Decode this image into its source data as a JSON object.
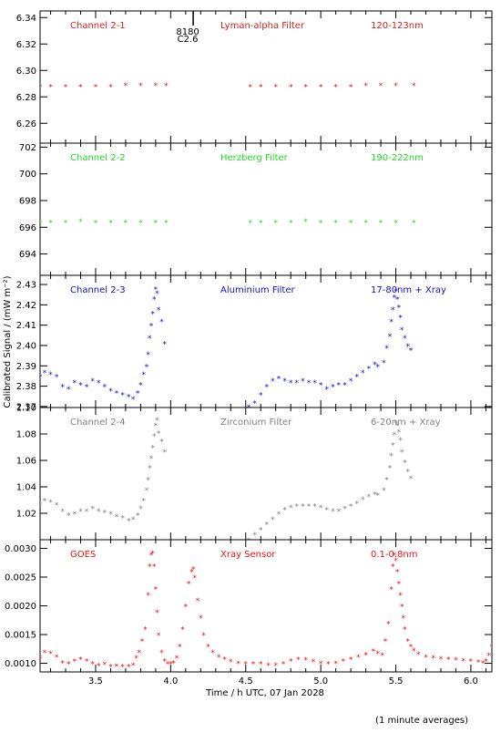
{
  "figure": {
    "ylabel": "Calibrated Signal / (mW m⁻²)",
    "xlabel": "Time / h UTC, 07 Jan 2028",
    "footnote": "(1 minute averages)",
    "xticks": [
      "3.5",
      "4.0",
      "4.5",
      "5.0",
      "5.5",
      "6.0"
    ],
    "marker": {
      "label_top": "8180",
      "label_bottom": "C2.6",
      "x": 4.15
    },
    "xlim": [
      3.13,
      6.14
    ]
  },
  "chart_data": [
    {
      "type": "scatter",
      "panel": "channel-2-1",
      "title": "",
      "xlabel": "",
      "ylabel": "",
      "labels": [
        "Channel 2-1",
        "Lyman-alpha Filter",
        "120-123nm"
      ],
      "color": "#d42020",
      "ylim": [
        6.245,
        6.345
      ],
      "yticks": [
        "6.26",
        "6.28",
        "6.30",
        "6.32",
        "6.34"
      ],
      "ytick_values": [
        6.26,
        6.28,
        6.3,
        6.32,
        6.34
      ],
      "series": [
        {
          "x": [
            3.13,
            3.2,
            3.3,
            3.4,
            3.5,
            3.6,
            3.7,
            3.8,
            3.9,
            3.97,
            4.53,
            4.6,
            4.7,
            4.8,
            4.9,
            5.0,
            5.1,
            5.2,
            5.3,
            5.4,
            5.5,
            5.62
          ],
          "y": [
            6.288,
            6.288,
            6.288,
            6.288,
            6.288,
            6.288,
            6.289,
            6.289,
            6.289,
            6.289,
            6.288,
            6.288,
            6.288,
            6.288,
            6.288,
            6.288,
            6.288,
            6.288,
            6.289,
            6.289,
            6.289,
            6.289
          ]
        }
      ]
    },
    {
      "type": "scatter",
      "panel": "channel-2-2",
      "title": "",
      "xlabel": "",
      "ylabel": "",
      "labels": [
        "Channel 2-2",
        "Herzberg Filter",
        "190-222nm"
      ],
      "color": "#22dd22",
      "ylim": [
        692.4,
        702.3
      ],
      "yticks": [
        "694",
        "696",
        "698",
        "700",
        "702"
      ],
      "ytick_values": [
        694,
        696,
        698,
        700,
        702
      ],
      "series": [
        {
          "x": [
            3.13,
            3.2,
            3.3,
            3.4,
            3.5,
            3.6,
            3.7,
            3.8,
            3.9,
            3.97,
            4.53,
            4.6,
            4.7,
            4.8,
            4.9,
            5.0,
            5.1,
            5.2,
            5.3,
            5.4,
            5.5,
            5.62
          ],
          "y": [
            696.4,
            696.4,
            696.4,
            696.5,
            696.4,
            696.4,
            696.4,
            696.4,
            696.4,
            696.4,
            696.4,
            696.4,
            696.4,
            696.4,
            696.5,
            696.4,
            696.4,
            696.4,
            696.4,
            696.4,
            696.4,
            696.4
          ]
        }
      ]
    },
    {
      "type": "scatter",
      "panel": "channel-2-3",
      "title": "",
      "xlabel": "",
      "ylabel": "",
      "labels": [
        "Channel 2-3",
        "Aluminium Filter",
        "17-80nm + Xray"
      ],
      "color": "#1010cc",
      "ylim": [
        2.3695,
        2.4345
      ],
      "yticks": [
        "2.37",
        "2.38",
        "2.39",
        "2.40",
        "2.41",
        "2.42",
        "2.43"
      ],
      "ytick_values": [
        2.37,
        2.38,
        2.39,
        2.4,
        2.41,
        2.42,
        2.43
      ],
      "series": [
        {
          "x": [
            3.13,
            3.16,
            3.2,
            3.24,
            3.28,
            3.32,
            3.36,
            3.4,
            3.44,
            3.48,
            3.52,
            3.56,
            3.6,
            3.64,
            3.68,
            3.72,
            3.75,
            3.78,
            3.8,
            3.82,
            3.84,
            3.85,
            3.86,
            3.87,
            3.88,
            3.89,
            3.9,
            3.91,
            3.92,
            3.94,
            3.96,
            4.52,
            4.56,
            4.6,
            4.64,
            4.68,
            4.72,
            4.76,
            4.8,
            4.84,
            4.88,
            4.92,
            4.96,
            5.0,
            5.04,
            5.08,
            5.12,
            5.16,
            5.2,
            5.24,
            5.28,
            5.32,
            5.36,
            5.38,
            5.42,
            5.44,
            5.46,
            5.47,
            5.48,
            5.49,
            5.5,
            5.51,
            5.52,
            5.53,
            5.54,
            5.56,
            5.58,
            5.6
          ],
          "y": [
            2.385,
            2.387,
            2.386,
            2.385,
            2.38,
            2.379,
            2.382,
            2.381,
            2.38,
            2.383,
            2.382,
            2.38,
            2.378,
            2.377,
            2.376,
            2.375,
            2.374,
            2.377,
            2.381,
            2.386,
            2.39,
            2.396,
            2.404,
            2.41,
            2.416,
            2.423,
            2.428,
            2.426,
            2.418,
            2.412,
            2.401,
            2.37,
            2.372,
            2.376,
            2.38,
            2.383,
            2.384,
            2.383,
            2.382,
            2.382,
            2.383,
            2.382,
            2.382,
            2.381,
            2.379,
            2.38,
            2.381,
            2.381,
            2.383,
            2.385,
            2.387,
            2.389,
            2.391,
            2.39,
            2.392,
            2.399,
            2.405,
            2.412,
            2.418,
            2.424,
            2.427,
            2.423,
            2.419,
            2.414,
            2.408,
            2.404,
            2.4,
            2.398
          ]
        }
      ]
    },
    {
      "type": "scatter",
      "panel": "channel-2-4",
      "title": "",
      "xlabel": "",
      "ylabel": "",
      "labels": [
        "Channel 2-4",
        "Zirconium Filter",
        "6-20nm + Xray"
      ],
      "color": "#808080",
      "ylim": [
        1.0,
        1.1
      ],
      "yticks": [
        "1.02",
        "1.04",
        "1.06",
        "1.08",
        "1.10"
      ],
      "ytick_values": [
        1.02,
        1.04,
        1.06,
        1.08,
        1.1
      ],
      "series": [
        {
          "x": [
            3.13,
            3.16,
            3.2,
            3.24,
            3.28,
            3.32,
            3.36,
            3.4,
            3.44,
            3.48,
            3.52,
            3.56,
            3.6,
            3.64,
            3.68,
            3.72,
            3.75,
            3.78,
            3.8,
            3.82,
            3.84,
            3.85,
            3.86,
            3.87,
            3.88,
            3.89,
            3.9,
            3.91,
            3.92,
            3.94,
            3.96,
            4.52,
            4.56,
            4.6,
            4.64,
            4.68,
            4.72,
            4.76,
            4.8,
            4.84,
            4.88,
            4.92,
            4.96,
            5.0,
            5.04,
            5.08,
            5.12,
            5.16,
            5.2,
            5.24,
            5.28,
            5.32,
            5.36,
            5.38,
            5.42,
            5.44,
            5.46,
            5.47,
            5.48,
            5.49,
            5.5,
            5.51,
            5.52,
            5.53,
            5.54,
            5.56,
            5.58,
            5.6
          ],
          "y": [
            1.027,
            1.03,
            1.029,
            1.027,
            1.022,
            1.019,
            1.02,
            1.022,
            1.022,
            1.024,
            1.022,
            1.021,
            1.02,
            1.018,
            1.017,
            1.015,
            1.016,
            1.019,
            1.024,
            1.03,
            1.038,
            1.046,
            1.055,
            1.062,
            1.07,
            1.079,
            1.087,
            1.091,
            1.081,
            1.075,
            1.067,
            1.0,
            1.004,
            1.008,
            1.012,
            1.016,
            1.02,
            1.023,
            1.025,
            1.026,
            1.026,
            1.026,
            1.026,
            1.025,
            1.023,
            1.022,
            1.022,
            1.024,
            1.026,
            1.028,
            1.031,
            1.033,
            1.035,
            1.034,
            1.038,
            1.046,
            1.055,
            1.064,
            1.072,
            1.08,
            1.089,
            1.087,
            1.082,
            1.076,
            1.067,
            1.059,
            1.052,
            1.047
          ]
        }
      ]
    },
    {
      "type": "scatter",
      "panel": "goes",
      "title": "",
      "xlabel": "",
      "ylabel": "",
      "labels": [
        "GOES",
        "Xray Sensor",
        "0.1-0.8nm"
      ],
      "color": "#ee1111",
      "ylim": [
        0.00085,
        0.00315
      ],
      "yticks": [
        "0.0010",
        "0.0015",
        "0.0020",
        "0.0025",
        "0.0030"
      ],
      "ytick_values": [
        0.001,
        0.0015,
        0.002,
        0.0025,
        0.003
      ],
      "series": [
        {
          "x": [
            3.13,
            3.16,
            3.2,
            3.24,
            3.28,
            3.32,
            3.36,
            3.4,
            3.44,
            3.48,
            3.52,
            3.56,
            3.6,
            3.64,
            3.68,
            3.72,
            3.75,
            3.77,
            3.79,
            3.81,
            3.83,
            3.85,
            3.86,
            3.87,
            3.88,
            3.89,
            3.9,
            3.91,
            3.92,
            3.94,
            3.96,
            3.98,
            4.0,
            4.02,
            4.04,
            4.06,
            4.08,
            4.1,
            4.12,
            4.14,
            4.15,
            4.16,
            4.18,
            4.2,
            4.22,
            4.25,
            4.28,
            4.32,
            4.36,
            4.4,
            4.45,
            4.5,
            4.55,
            4.6,
            4.65,
            4.7,
            4.75,
            4.8,
            4.85,
            4.9,
            4.95,
            5.0,
            5.05,
            5.1,
            5.15,
            5.2,
            5.25,
            5.3,
            5.35,
            5.38,
            5.41,
            5.43,
            5.45,
            5.47,
            5.48,
            5.49,
            5.5,
            5.51,
            5.52,
            5.53,
            5.54,
            5.55,
            5.56,
            5.58,
            5.6,
            5.62,
            5.65,
            5.7,
            5.75,
            5.8,
            5.85,
            5.9,
            5.95,
            6.0,
            6.05,
            6.08,
            6.1,
            6.12,
            6.14
          ],
          "y": [
            0.0011,
            0.0012,
            0.00118,
            0.00112,
            0.00102,
            0.001,
            0.00105,
            0.00108,
            0.00105,
            0.001,
            0.00097,
            0.00099,
            0.00095,
            0.00096,
            0.00095,
            0.00095,
            0.00098,
            0.0011,
            0.0012,
            0.0014,
            0.0016,
            0.0022,
            0.0027,
            0.0029,
            0.00293,
            0.0027,
            0.0023,
            0.0019,
            0.0015,
            0.0012,
            0.00105,
            0.001,
            0.001,
            0.00102,
            0.0011,
            0.0013,
            0.0016,
            0.002,
            0.0024,
            0.0026,
            0.00265,
            0.0025,
            0.0021,
            0.0018,
            0.0015,
            0.0013,
            0.0012,
            0.00112,
            0.00108,
            0.00104,
            0.00101,
            0.001,
            0.001,
            0.001,
            0.00098,
            0.00098,
            0.001,
            0.00105,
            0.00108,
            0.00107,
            0.00104,
            0.00101,
            0.001,
            0.00101,
            0.00105,
            0.00108,
            0.00112,
            0.00116,
            0.00122,
            0.00118,
            0.00115,
            0.0014,
            0.0017,
            0.0023,
            0.0027,
            0.0029,
            0.0028,
            0.0026,
            0.0024,
            0.0022,
            0.002,
            0.0018,
            0.0016,
            0.0014,
            0.0013,
            0.00123,
            0.00117,
            0.00112,
            0.0011,
            0.00109,
            0.00108,
            0.00107,
            0.00106,
            0.00105,
            0.00103,
            0.00102,
            0.00105,
            0.00115,
            0.0013
          ]
        }
      ]
    }
  ]
}
